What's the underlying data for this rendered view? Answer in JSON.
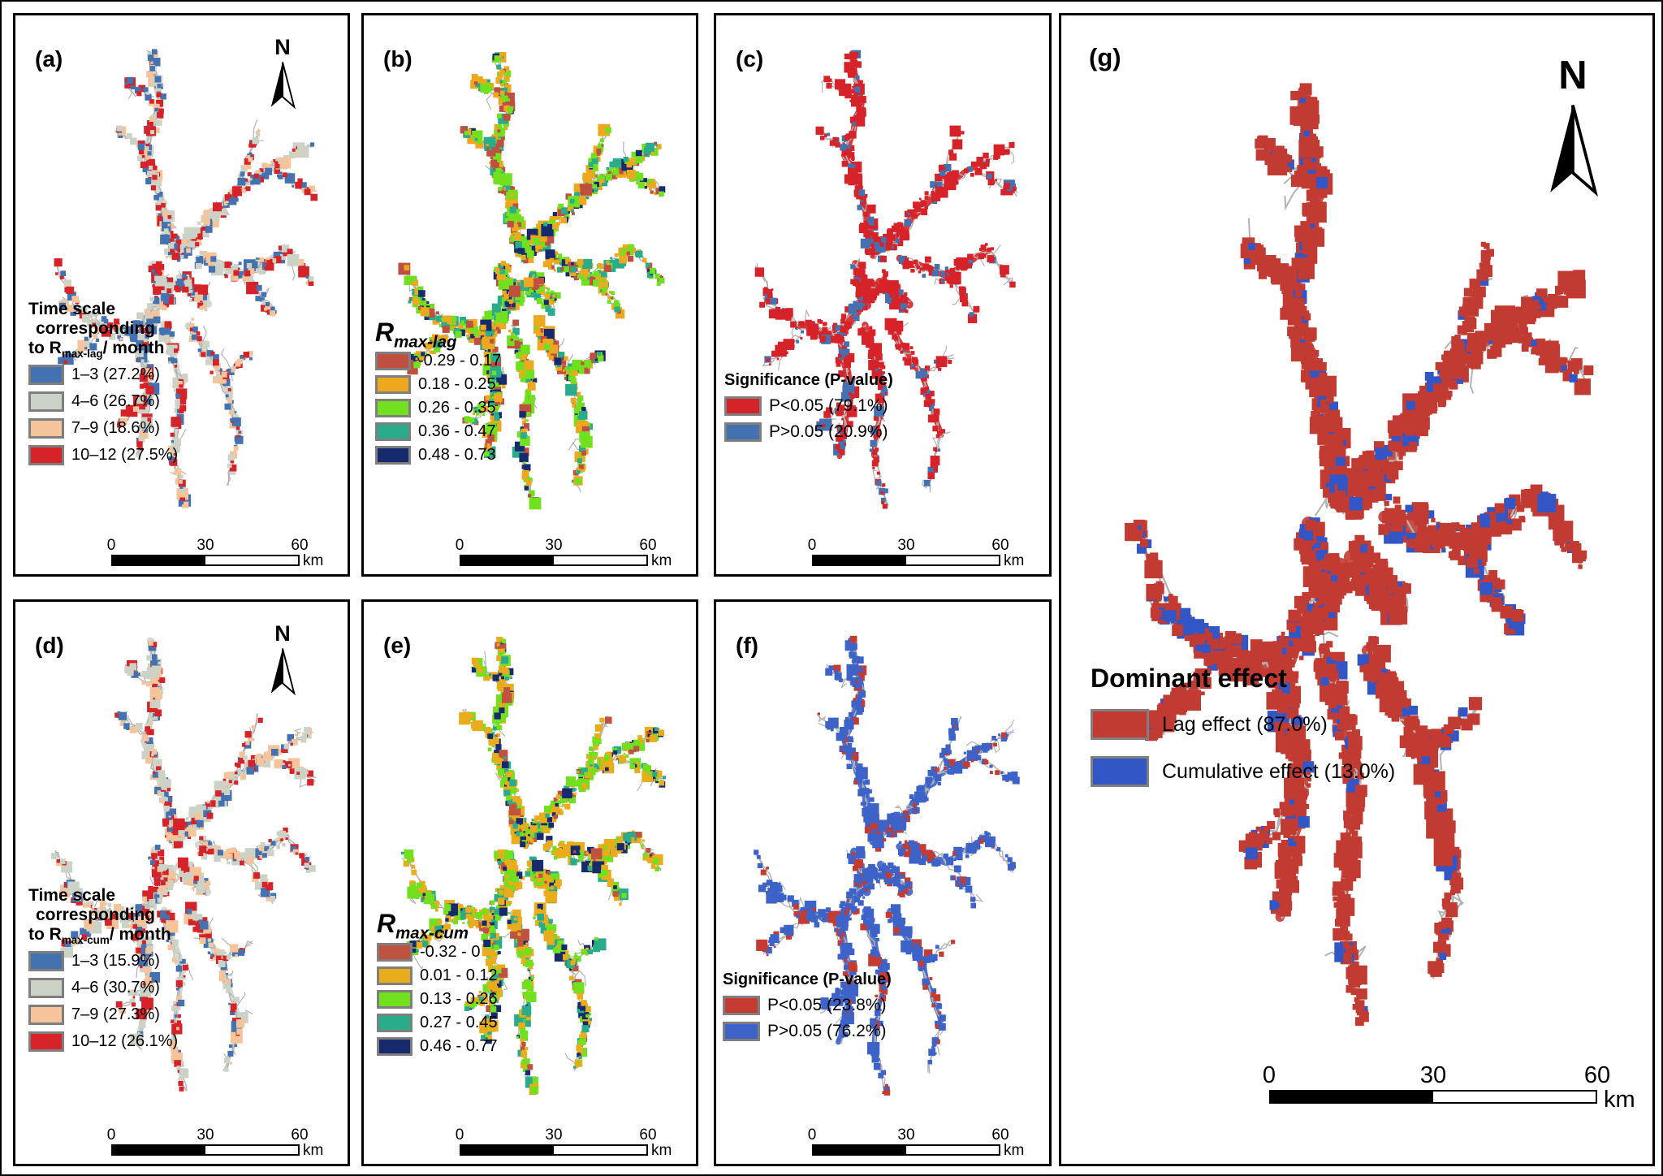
{
  "figure": {
    "panels": [
      {
        "id": "a",
        "label": "(a)",
        "north_arrow": true,
        "north_label": "N",
        "legend": {
          "title_lines": [
            [
              {
                "text": "Time scale"
              }
            ],
            [
              {
                "text": "corresponding"
              }
            ],
            [
              {
                "text": "to R"
              },
              {
                "text": "max-lag",
                "sub": true
              },
              {
                "text": "/ month"
              }
            ]
          ],
          "items": [
            {
              "color": "#4472b0",
              "label": "1–3 (27.2%)"
            },
            {
              "color": "#ccd3c6",
              "label": "4–6 (26.7%)"
            },
            {
              "color": "#f6c49b",
              "label": "7–9 (18.6%)"
            },
            {
              "color": "#d62329",
              "label": "10–12 (27.5%)"
            }
          ]
        },
        "scalebar": {
          "ticks": [
            "0",
            "30",
            "60"
          ],
          "unit": "km"
        },
        "map": {
          "seed": 3,
          "cells": 900,
          "outline": "#b3b3b3",
          "base": "#cfd6c9",
          "palette": [
            {
              "color": "#4472b0",
              "weight": 27.2
            },
            {
              "color": "#ccd3c6",
              "weight": 26.7
            },
            {
              "color": "#f6c49b",
              "weight": 18.6
            },
            {
              "color": "#d62329",
              "weight": 27.5
            }
          ]
        }
      },
      {
        "id": "b",
        "label": "(b)",
        "north_arrow": false,
        "legend": {
          "title_lines": [
            [
              {
                "text": "R"
              },
              {
                "text": "max-lag",
                "sub": true
              }
            ]
          ],
          "items": [
            {
              "color": "#bf4f41",
              "label": "-0.29 - 0.17"
            },
            {
              "color": "#eda81f",
              "label": "0.18 - 0.25"
            },
            {
              "color": "#70e01f",
              "label": "0.26 - 0.35"
            },
            {
              "color": "#2aab8a",
              "label": "0.36 - 0.47"
            },
            {
              "color": "#172a6e",
              "label": "0.48 - 0.73"
            }
          ]
        },
        "scalebar": {
          "ticks": [
            "0",
            "30",
            "60"
          ],
          "unit": "km"
        },
        "map": {
          "seed": 7,
          "cells": 1500,
          "outline": "#b3b3b3",
          "base": null,
          "palette": [
            {
              "color": "#bf4f41",
              "weight": 12
            },
            {
              "color": "#eda81f",
              "weight": 30
            },
            {
              "color": "#70e01f",
              "weight": 32
            },
            {
              "color": "#2aab8a",
              "weight": 16
            },
            {
              "color": "#172a6e",
              "weight": 10
            }
          ]
        }
      },
      {
        "id": "c",
        "label": "(c)",
        "north_arrow": false,
        "legend": {
          "title_lines": [
            [
              {
                "text": "Significance (P-value)"
              }
            ]
          ],
          "items": [
            {
              "color": "#d62329",
              "label": "P<0.05 (79.1%)"
            },
            {
              "color": "#4472b0",
              "label": "P>0.05 (20.9%)"
            }
          ]
        },
        "scalebar": {
          "ticks": [
            "0",
            "30",
            "60"
          ],
          "unit": "km"
        },
        "map": {
          "seed": 5,
          "cells": 760,
          "outline": "#b3b3b3",
          "base": "#d62329",
          "palette": [
            {
              "color": "#d62329",
              "weight": 79.1
            },
            {
              "color": "#4472b0",
              "weight": 20.9
            }
          ]
        }
      },
      {
        "id": "d",
        "label": "(d)",
        "north_arrow": true,
        "north_label": "N",
        "legend": {
          "title_lines": [
            [
              {
                "text": "Time scale"
              }
            ],
            [
              {
                "text": "corresponding"
              }
            ],
            [
              {
                "text": "to R"
              },
              {
                "text": "max-cum",
                "sub": true
              },
              {
                "text": "/ month"
              }
            ]
          ],
          "items": [
            {
              "color": "#4472b0",
              "label": "1–3 (15.9%)"
            },
            {
              "color": "#ccd3c6",
              "label": "4–6 (30.7%)"
            },
            {
              "color": "#f6c49b",
              "label": "7–9 (27.3%)"
            },
            {
              "color": "#d62329",
              "label": "10–12 (26.1%)"
            }
          ]
        },
        "scalebar": {
          "ticks": [
            "0",
            "30",
            "60"
          ],
          "unit": "km"
        },
        "map": {
          "seed": 9,
          "cells": 900,
          "outline": "#b3b3b3",
          "base": "#cfd6c9",
          "palette": [
            {
              "color": "#4472b0",
              "weight": 15.9
            },
            {
              "color": "#ccd3c6",
              "weight": 30.7
            },
            {
              "color": "#f6c49b",
              "weight": 27.3
            },
            {
              "color": "#d62329",
              "weight": 26.1
            }
          ]
        }
      },
      {
        "id": "e",
        "label": "(e)",
        "north_arrow": false,
        "legend": {
          "title_lines": [
            [
              {
                "text": "R"
              },
              {
                "text": "max-cum",
                "sub": true
              }
            ]
          ],
          "items": [
            {
              "color": "#bf5340",
              "label": "-0.32 - 0"
            },
            {
              "color": "#e9ac1b",
              "label": "0.01 - 0.12"
            },
            {
              "color": "#70e01f",
              "label": "0.13 - 0.26"
            },
            {
              "color": "#2aab8a",
              "label": "0.27 - 0.45"
            },
            {
              "color": "#172a6e",
              "label": "0.46 - 0.77"
            }
          ]
        },
        "scalebar": {
          "ticks": [
            "0",
            "30",
            "60"
          ],
          "unit": "km"
        },
        "map": {
          "seed": 4,
          "cells": 1500,
          "outline": "#b3b3b3",
          "base": null,
          "palette": [
            {
              "color": "#bf5340",
              "weight": 8
            },
            {
              "color": "#e9ac1b",
              "weight": 40
            },
            {
              "color": "#70e01f",
              "weight": 28
            },
            {
              "color": "#2aab8a",
              "weight": 14
            },
            {
              "color": "#172a6e",
              "weight": 10
            }
          ]
        }
      },
      {
        "id": "f",
        "label": "(f)",
        "north_arrow": false,
        "legend": {
          "title_lines": [
            [
              {
                "text": "Significance (P-value)"
              }
            ]
          ],
          "items": [
            {
              "color": "#c53a31",
              "label": "P<0.05 (23.8%)"
            },
            {
              "color": "#3d63c8",
              "label": "P>0.05 (76.2%)"
            }
          ]
        },
        "scalebar": {
          "ticks": [
            "0",
            "30",
            "60"
          ],
          "unit": "km"
        },
        "map": {
          "seed": 6,
          "cells": 760,
          "outline": "#b3b3b3",
          "base": "#3d63c8",
          "palette": [
            {
              "color": "#c53a31",
              "weight": 23.8
            },
            {
              "color": "#3d63c8",
              "weight": 76.2
            }
          ]
        }
      },
      {
        "id": "g",
        "label": "(g)",
        "north_arrow": true,
        "north_label": "N",
        "legend": {
          "title_lines": [
            [
              {
                "text": "Dominant effect"
              }
            ]
          ],
          "items": [
            {
              "color": "#c23b32",
              "label": "Lag effect (87.0%)"
            },
            {
              "color": "#3356c6",
              "label": "Cumulative effect (13.0%)"
            }
          ]
        },
        "scalebar": {
          "ticks": [
            "0",
            "30",
            "60"
          ],
          "unit": "km"
        },
        "map": {
          "seed": 8,
          "cells": 2100,
          "outline": "#b3b3b3",
          "base": "#c23b32",
          "palette": [
            {
              "color": "#c23b32",
              "weight": 87
            },
            {
              "color": "#3356c6",
              "weight": 13
            }
          ]
        }
      }
    ]
  }
}
